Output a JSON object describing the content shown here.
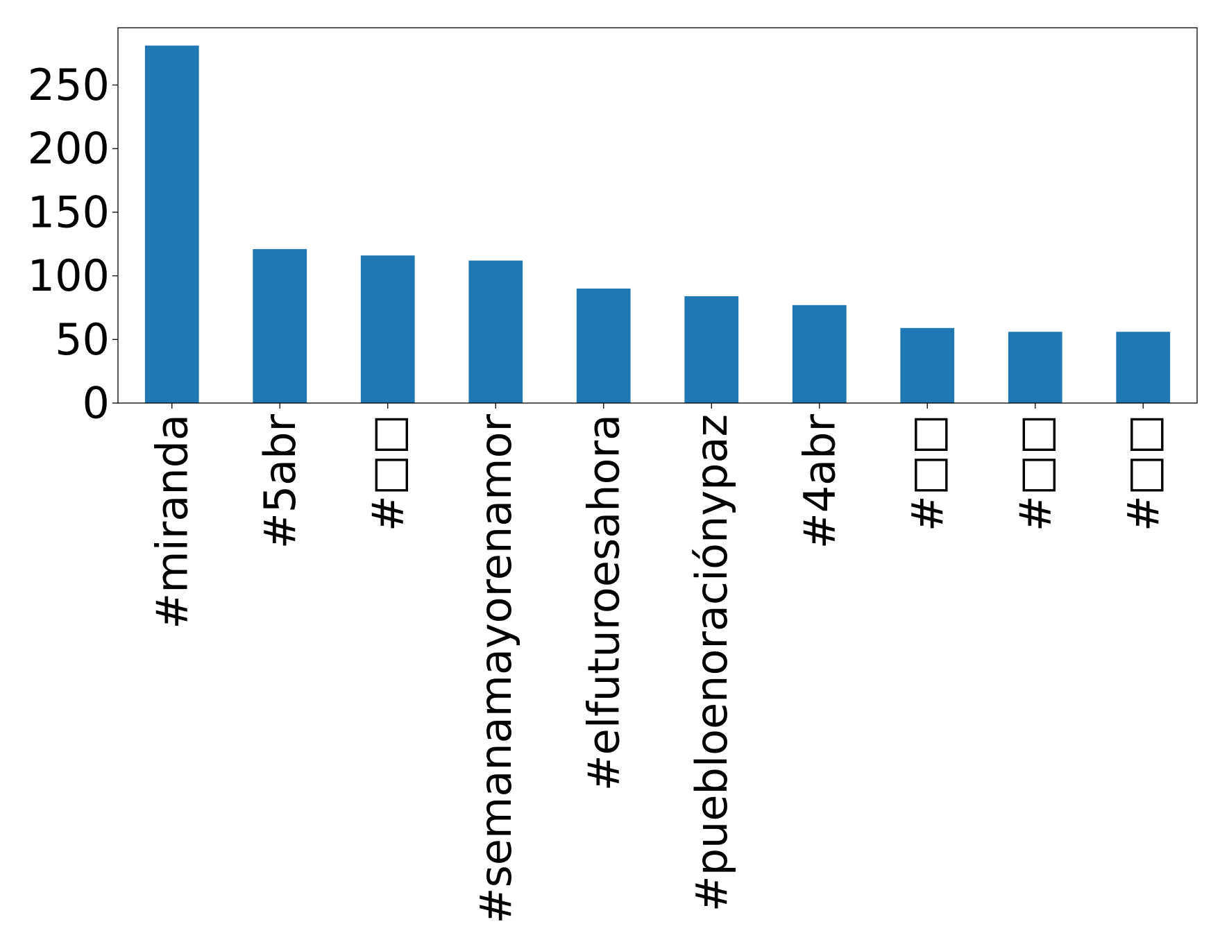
{
  "chart_data": {
    "type": "bar",
    "title": "",
    "xlabel": "",
    "ylabel": "",
    "categories": [
      "#miranda",
      "#5abr",
      "#□□",
      "#semanamayorenamor",
      "#elfuturoesahora",
      "#puebloenoraciónypaz",
      "#4abr",
      "#□□",
      "#□□",
      "#□□"
    ],
    "values": [
      281,
      121,
      116,
      112,
      90,
      84,
      77,
      59,
      56,
      56
    ],
    "ylim": [
      0,
      295
    ],
    "yticks": [
      0,
      50,
      100,
      150,
      200,
      250
    ],
    "grid": false,
    "legend": "none",
    "bar_color": "#1f77b4",
    "axis_color": "#000000"
  }
}
